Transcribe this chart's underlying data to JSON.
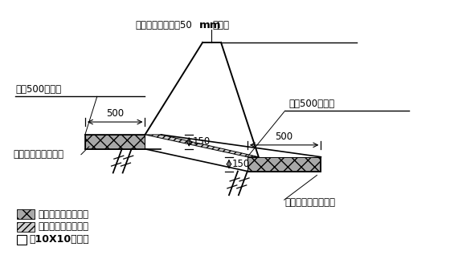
{
  "title": "",
  "bg_color": "#ffffff",
  "top_annotation_pre": "阴阳角要控制半径50",
  "top_annotation_bold": "mm",
  "top_annotation_post": "的圆弧",
  "left_label": "放上500控制线",
  "right_label": "放上500控制线",
  "left_bottom_label": "插上钢筋以固定方木",
  "right_bottom_label": "插上钢筋以固定方木",
  "legend1": "第一次浇筑平面垫层",
  "legend2": "第二次浇筑斜面垫层",
  "legend3_text": "10X10的方木",
  "dim_500_left": "500",
  "dim_500_right": "500",
  "dim_150_left": "150",
  "dim_150_right": "150"
}
